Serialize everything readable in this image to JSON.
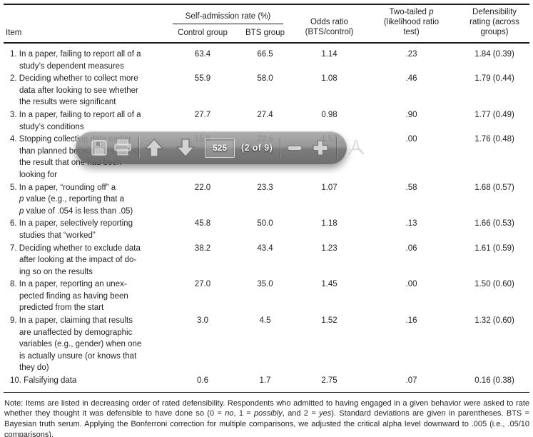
{
  "colors": {
    "text": "#231f20",
    "rule": "#1c1c1c",
    "toolbar_gray_top": "#a3a3a3",
    "toolbar_gray_bottom": "#636363",
    "toolbar_icon_light": "#d6d6d6",
    "toolbar_text": "#f1f1f1"
  },
  "table": {
    "header": {
      "item": "Item",
      "self_admission_group": "Self-admission rate (%)",
      "control_group": "Control group",
      "bts_group": "BTS group",
      "odds_ratio": "Odds ratio (BTS/control)",
      "two_tailed_p": [
        "Two-tailed ",
        {
          "t": "p",
          "i": true
        },
        " (likelihood ratio test)"
      ],
      "defensibility": "Defensibility rating (across groups)"
    },
    "rows": [
      {
        "lines": [
          "1. In a paper, failing to report all of a",
          "study’s dependent measures"
        ],
        "control": "63.4",
        "bts": "66.5",
        "odds": "1.14",
        "p": ".23",
        "defensibility": "1.84 (0.39)"
      },
      {
        "lines": [
          "2. Deciding whether to collect more",
          "data after looking to see whether",
          "the results were significant"
        ],
        "control": "55.9",
        "bts": "58.0",
        "odds": "1.08",
        "p": ".46",
        "defensibility": "1.79 (0.44)"
      },
      {
        "lines": [
          "3. In a paper, failing to report all of a",
          "study’s conditions"
        ],
        "control": "27.7",
        "bts": "27.4",
        "odds": "0.98",
        "p": ".90",
        "defensibility": "1.77 (0.49)"
      },
      {
        "lines": [
          "4. Stopping collecting data earlier",
          "than planned because one found",
          "the result that one had been",
          "looking for"
        ],
        "control": "15.6",
        "bts": "22.5",
        "odds": "1.57",
        "p": ".00",
        "defensibility": "1.76 (0.48)"
      },
      {
        "lines": [
          "5. In a paper, “rounding off” a",
          [
            {
              "t": "p",
              "i": true
            },
            " value (e.g., reporting that a"
          ],
          [
            {
              "t": "p",
              "i": true
            },
            " value of .054 is less than .05)"
          ]
        ],
        "control": "22.0",
        "bts": "23.3",
        "odds": "1.07",
        "p": ".58",
        "defensibility": "1.68 (0.57)"
      },
      {
        "lines": [
          "6. In a paper, selectively reporting",
          "studies that “worked”"
        ],
        "control": "45.8",
        "bts": "50.0",
        "odds": "1.18",
        "p": ".13",
        "defensibility": "1.66 (0.53)"
      },
      {
        "lines": [
          "7. Deciding whether to exclude data",
          "after looking at the impact of do-",
          "ing so on the results"
        ],
        "control": "38.2",
        "bts": "43.4",
        "odds": "1.23",
        "p": ".06",
        "defensibility": "1.61 (0.59)"
      },
      {
        "lines": [
          "8. In a paper, reporting an unex-",
          "pected finding as having been",
          "predicted from the start"
        ],
        "control": "27.0",
        "bts": "35.0",
        "odds": "1.45",
        "p": ".00",
        "defensibility": "1.50 (0.60)"
      },
      {
        "lines": [
          "9. In a paper, claiming that results",
          "are unaffected by demographic",
          "variables (e.g., gender) when one",
          "is actually unsure (or knows that",
          "they do)"
        ],
        "control": "3.0",
        "bts": "4.5",
        "odds": "1.52",
        "p": ".16",
        "defensibility": "1.32 (0.60)"
      },
      {
        "lines": [
          "10. Falsifying data"
        ],
        "control": "0.6",
        "bts": "1.7",
        "odds": "2.75",
        "p": ".07",
        "defensibility": "0.16 (0.38)"
      }
    ]
  },
  "note": [
    "Note: Items are listed in decreasing order of rated defensibility. Respondents who admitted to having engaged in a given behavior were asked to rate whether they thought it was defensible to have done so (0 = ",
    {
      "t": "no",
      "i": true
    },
    ", 1 = ",
    {
      "t": "possibly",
      "i": true
    },
    ", and 2 = ",
    {
      "t": "yes",
      "i": true
    },
    "). Standard deviations are given in parentheses. BTS = Bayesian truth serum. Applying the Bonferroni correction for multiple comparisons, we adjusted the critical alpha level downward to .005 (i.e., .05/10 comparisons)."
  ],
  "pdf_toolbar": {
    "page_number": "525",
    "page_count_label": "(2 of 9)",
    "icons": [
      "save-icon",
      "print-icon",
      "page-up-icon",
      "page-down-icon",
      "zoom-out-icon",
      "zoom-in-icon",
      "acrobat-icon"
    ]
  }
}
